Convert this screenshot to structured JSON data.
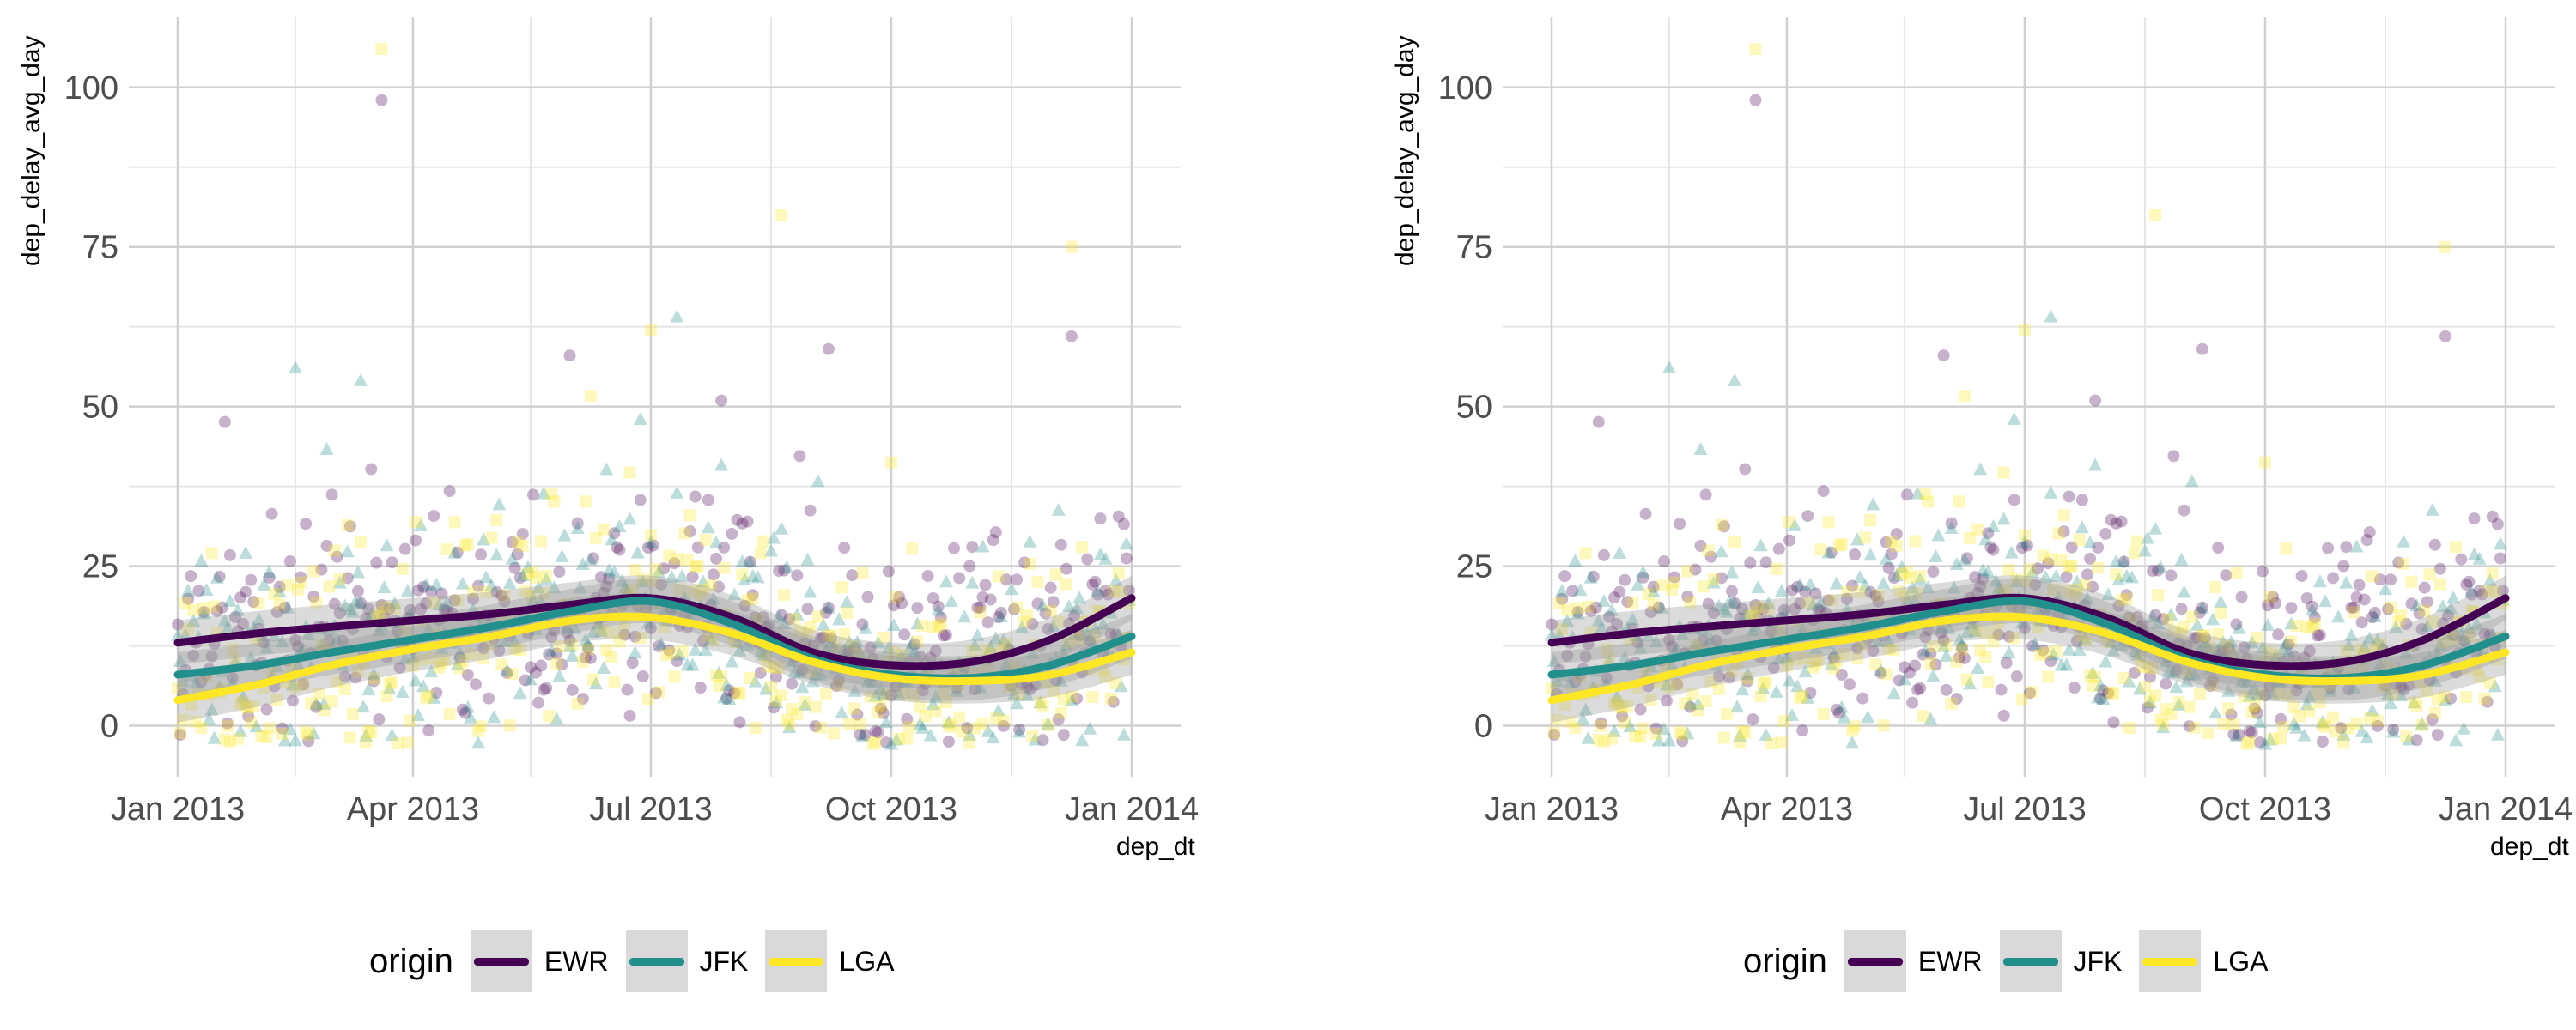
{
  "chart_data": [
    {
      "type": "scatter",
      "title": "",
      "xlabel": "dep_dt",
      "ylabel": "dep_delay_avg_day",
      "xlim": [
        "2013-01-01",
        "2014-01-01"
      ],
      "ylim": [
        -8,
        111
      ],
      "x_ticks": [
        "Jan 2013",
        "Apr 2013",
        "Jul 2013",
        "Oct 2013",
        "Jan 2014"
      ],
      "y_ticks": [
        "0",
        "25",
        "50",
        "75",
        "100"
      ],
      "grid": true,
      "legend": {
        "title": "origin",
        "position": "bottom"
      },
      "series": [
        {
          "name": "EWR",
          "color": "#440154",
          "marker": "circle",
          "smooth": [
            [
              "2013-01-01",
              13
            ],
            [
              "2013-02-01",
              14.5
            ],
            [
              "2013-03-01",
              15.5
            ],
            [
              "2013-04-01",
              16.5
            ],
            [
              "2013-05-01",
              17.5
            ],
            [
              "2013-06-01",
              19
            ],
            [
              "2013-07-01",
              20
            ],
            [
              "2013-08-01",
              17
            ],
            [
              "2013-09-01",
              11.5
            ],
            [
              "2013-10-01",
              9.5
            ],
            [
              "2013-11-01",
              10
            ],
            [
              "2013-12-01",
              13.5
            ],
            [
              "2014-01-01",
              20
            ]
          ]
        },
        {
          "name": "JFK",
          "color": "#21908C",
          "marker": "triangle",
          "smooth": [
            [
              "2013-01-01",
              8
            ],
            [
              "2013-02-01",
              9.5
            ],
            [
              "2013-03-01",
              11.5
            ],
            [
              "2013-04-01",
              13.5
            ],
            [
              "2013-05-01",
              15.5
            ],
            [
              "2013-06-01",
              18
            ],
            [
              "2013-07-01",
              19.5
            ],
            [
              "2013-08-01",
              16
            ],
            [
              "2013-09-01",
              10.5
            ],
            [
              "2013-10-01",
              8
            ],
            [
              "2013-11-01",
              7.5
            ],
            [
              "2013-12-01",
              9.5
            ],
            [
              "2014-01-01",
              14
            ]
          ]
        },
        {
          "name": "LGA",
          "color": "#FDE725",
          "marker": "square",
          "smooth": [
            [
              "2013-01-01",
              4
            ],
            [
              "2013-02-01",
              6.5
            ],
            [
              "2013-03-01",
              9.5
            ],
            [
              "2013-04-01",
              12
            ],
            [
              "2013-05-01",
              14
            ],
            [
              "2013-06-01",
              16.5
            ],
            [
              "2013-07-01",
              17
            ],
            [
              "2013-08-01",
              14.5
            ],
            [
              "2013-09-01",
              10
            ],
            [
              "2013-10-01",
              7.5
            ],
            [
              "2013-11-01",
              7
            ],
            [
              "2013-12-01",
              8
            ],
            [
              "2014-01-01",
              11.5
            ]
          ]
        }
      ],
      "highlight_points": [
        {
          "series": "EWR",
          "x": "2013-03-20",
          "y": 98
        },
        {
          "series": "LGA",
          "x": "2013-03-20",
          "y": 106
        },
        {
          "series": "LGA",
          "x": "2013-08-20",
          "y": 80
        },
        {
          "series": "LGA",
          "x": "2013-12-09",
          "y": 75
        },
        {
          "series": "EWR",
          "x": "2013-12-09",
          "y": 61
        },
        {
          "series": "JFK",
          "x": "2013-07-11",
          "y": 64
        },
        {
          "series": "LGA",
          "x": "2013-07-01",
          "y": 62
        },
        {
          "series": "EWR",
          "x": "2013-05-31",
          "y": 58
        },
        {
          "series": "EWR",
          "x": "2013-09-07",
          "y": 59
        },
        {
          "series": "JFK",
          "x": "2013-02-15",
          "y": 56
        },
        {
          "series": "JFK",
          "x": "2013-03-12",
          "y": 54
        }
      ]
    },
    {
      "type": "scatter",
      "title": "",
      "xlabel": "dep_dt",
      "ylabel": "dep_delay_avg_day",
      "xlim": [
        "2013-01-01",
        "2014-01-01"
      ],
      "ylim": [
        -8,
        111
      ],
      "x_ticks": [
        "Jan 2013",
        "Apr 2013",
        "Jul 2013",
        "Oct 2013",
        "Jan 2014"
      ],
      "y_ticks": [
        "0",
        "25",
        "50",
        "75",
        "100"
      ],
      "grid": true,
      "legend": {
        "title": "origin",
        "position": "bottom"
      },
      "series": [
        {
          "name": "EWR",
          "color": "#440154",
          "marker": "circle",
          "smooth": [
            [
              "2013-01-01",
              13
            ],
            [
              "2013-02-01",
              14.5
            ],
            [
              "2013-03-01",
              15.5
            ],
            [
              "2013-04-01",
              16.5
            ],
            [
              "2013-05-01",
              17.5
            ],
            [
              "2013-06-01",
              19
            ],
            [
              "2013-07-01",
              20
            ],
            [
              "2013-08-01",
              17
            ],
            [
              "2013-09-01",
              11.5
            ],
            [
              "2013-10-01",
              9.5
            ],
            [
              "2013-11-01",
              10
            ],
            [
              "2013-12-01",
              13.5
            ],
            [
              "2014-01-01",
              20
            ]
          ]
        },
        {
          "name": "JFK",
          "color": "#21908C",
          "marker": "triangle",
          "smooth": [
            [
              "2013-01-01",
              8
            ],
            [
              "2013-02-01",
              9.5
            ],
            [
              "2013-03-01",
              11.5
            ],
            [
              "2013-04-01",
              13.5
            ],
            [
              "2013-05-01",
              15.5
            ],
            [
              "2013-06-01",
              18
            ],
            [
              "2013-07-01",
              19.5
            ],
            [
              "2013-08-01",
              16
            ],
            [
              "2013-09-01",
              10.5
            ],
            [
              "2013-10-01",
              8
            ],
            [
              "2013-11-01",
              7.5
            ],
            [
              "2013-12-01",
              9.5
            ],
            [
              "2014-01-01",
              14
            ]
          ]
        },
        {
          "name": "LGA",
          "color": "#FDE725",
          "marker": "square",
          "smooth": [
            [
              "2013-01-01",
              4
            ],
            [
              "2013-02-01",
              6.5
            ],
            [
              "2013-03-01",
              9.5
            ],
            [
              "2013-04-01",
              12
            ],
            [
              "2013-05-01",
              14
            ],
            [
              "2013-06-01",
              16.5
            ],
            [
              "2013-07-01",
              17
            ],
            [
              "2013-08-01",
              14.5
            ],
            [
              "2013-09-01",
              10
            ],
            [
              "2013-10-01",
              7.5
            ],
            [
              "2013-11-01",
              7
            ],
            [
              "2013-12-01",
              8
            ],
            [
              "2014-01-01",
              11.5
            ]
          ]
        }
      ],
      "highlight_points": [
        {
          "series": "EWR",
          "x": "2013-03-20",
          "y": 98
        },
        {
          "series": "LGA",
          "x": "2013-03-20",
          "y": 106
        },
        {
          "series": "LGA",
          "x": "2013-08-20",
          "y": 80
        },
        {
          "series": "LGA",
          "x": "2013-12-09",
          "y": 75
        },
        {
          "series": "EWR",
          "x": "2013-12-09",
          "y": 61
        },
        {
          "series": "JFK",
          "x": "2013-07-11",
          "y": 64
        },
        {
          "series": "LGA",
          "x": "2013-07-01",
          "y": 62
        },
        {
          "series": "EWR",
          "x": "2013-05-31",
          "y": 58
        },
        {
          "series": "EWR",
          "x": "2013-09-07",
          "y": 59
        },
        {
          "series": "JFK",
          "x": "2013-02-15",
          "y": 56
        },
        {
          "series": "JFK",
          "x": "2013-03-12",
          "y": 54
        }
      ]
    }
  ]
}
